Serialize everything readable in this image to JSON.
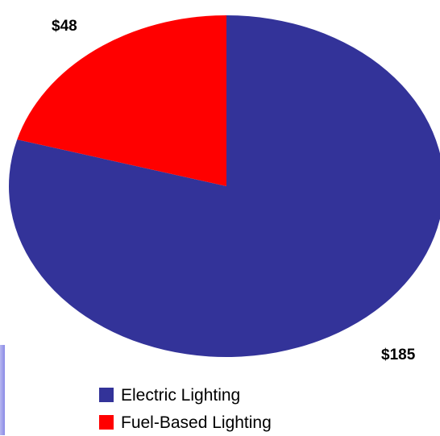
{
  "chart_data": {
    "type": "pie",
    "title": "",
    "slices": [
      {
        "label": "Electric Lighting",
        "value": 185,
        "value_label": "$185",
        "color": "#333399"
      },
      {
        "label": "Fuel-Based Lighting",
        "value": 48,
        "value_label": "$48",
        "color": "#ff0000"
      }
    ],
    "legend": {
      "placement": "bottom",
      "entries": [
        "Electric Lighting",
        "Fuel-Based Lighting"
      ]
    },
    "start_angle_deg": 0,
    "direction": "clockwise"
  }
}
